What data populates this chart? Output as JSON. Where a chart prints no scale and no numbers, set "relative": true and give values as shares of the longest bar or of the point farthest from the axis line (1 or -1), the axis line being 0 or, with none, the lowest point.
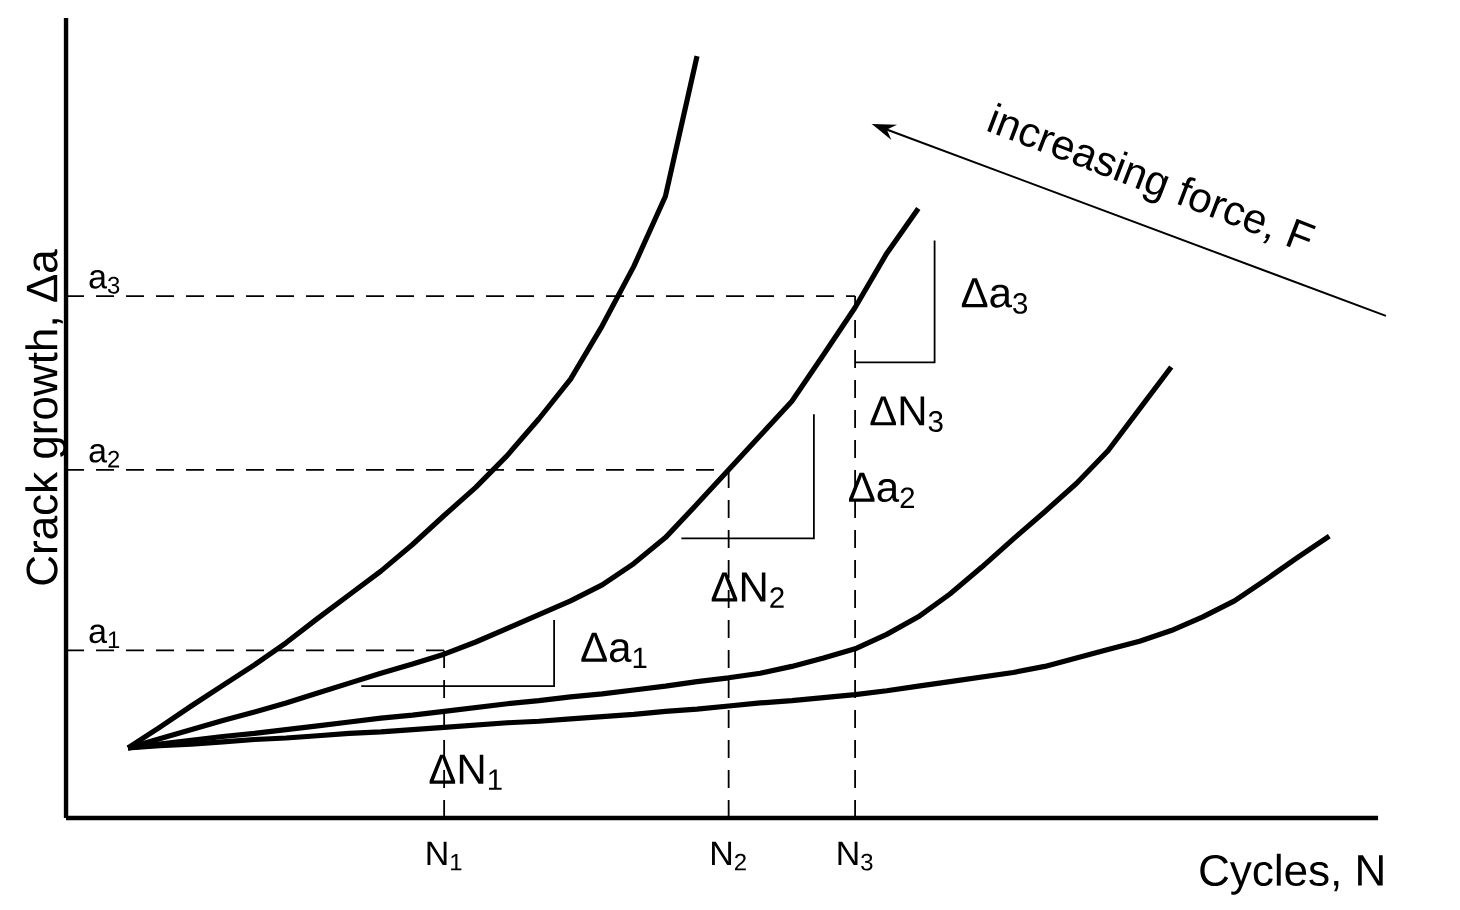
{
  "chart_data": {
    "type": "line",
    "relative": true,
    "xlabel": "Cycles, N",
    "ylabel": "Crack growth, Δa",
    "line_style": "solid",
    "marker": "none",
    "categories": [
      null,
      null,
      null,
      null,
      null,
      null,
      null,
      null,
      null,
      null,
      "N$_{1}$",
      null,
      null,
      null,
      null,
      null,
      null,
      null,
      null,
      "N$_{2}$",
      null,
      null,
      null,
      "N$_{3}$",
      null,
      null,
      null,
      null,
      null,
      null,
      null,
      null,
      null,
      null,
      null,
      null,
      null,
      null,
      null
    ],
    "series": [
      {
        "color": "#000000",
        "values": [
          0.092,
          0.119,
          0.147,
          0.174,
          0.201,
          0.23,
          0.262,
          0.293,
          0.324,
          0.359,
          0.397,
          0.434,
          0.476,
          0.524,
          0.576,
          0.646,
          0.724,
          0.816,
          1.0,
          null,
          null,
          null,
          null,
          null,
          null,
          null,
          null,
          null,
          null,
          null,
          null,
          null,
          null,
          null,
          null,
          null,
          null,
          null,
          null
        ]
      },
      {
        "color": "#000000",
        "values": [
          0.092,
          0.104,
          0.116,
          0.128,
          0.139,
          0.151,
          0.164,
          0.177,
          0.19,
          0.202,
          0.215,
          0.231,
          0.249,
          0.267,
          0.285,
          0.306,
          0.334,
          0.368,
          0.412,
          0.457,
          0.502,
          0.547,
          0.608,
          0.67,
          0.741,
          0.8,
          null,
          null,
          null,
          null,
          null,
          null,
          null,
          null,
          null,
          null,
          null,
          null,
          null
        ]
      },
      {
        "color": "#000000",
        "values": [
          0.092,
          0.097,
          0.102,
          0.107,
          0.111,
          0.116,
          0.121,
          0.126,
          0.131,
          0.135,
          0.14,
          0.145,
          0.15,
          0.154,
          0.159,
          0.163,
          0.168,
          0.173,
          0.179,
          0.184,
          0.19,
          0.199,
          0.21,
          0.222,
          0.241,
          0.264,
          0.294,
          0.329,
          0.366,
          0.402,
          0.439,
          0.482,
          0.537,
          0.592,
          null,
          null,
          null,
          null,
          null
        ]
      },
      {
        "color": "#000000",
        "values": [
          0.092,
          0.095,
          0.097,
          0.1,
          0.103,
          0.105,
          0.108,
          0.111,
          0.113,
          0.116,
          0.119,
          0.122,
          0.125,
          0.127,
          0.13,
          0.133,
          0.136,
          0.14,
          0.143,
          0.147,
          0.151,
          0.154,
          0.158,
          0.162,
          0.167,
          0.173,
          0.179,
          0.185,
          0.191,
          0.199,
          0.21,
          0.221,
          0.232,
          0.246,
          0.264,
          0.285,
          0.313,
          0.342,
          0.37
        ]
      }
    ],
    "ref_lines": [
      {
        "axis": "y",
        "value": 0.22,
        "label": "a$_{1}$",
        "line_style": "dashed"
      },
      {
        "axis": "y",
        "value": 0.457,
        "label": "a$_{2}$",
        "line_style": "dashed"
      },
      {
        "axis": "y",
        "value": 0.685,
        "label": "a$_{3}$",
        "line_style": "dashed"
      },
      {
        "axis": "x",
        "value": "N$_{1}$",
        "line_style": "dashed"
      },
      {
        "axis": "x",
        "value": "N$_{2}$",
        "line_style": "dashed"
      },
      {
        "axis": "x",
        "value": "N$_{3}$",
        "line_style": "dashed"
      }
    ],
    "annotations": [
      "Δa$_{1}$",
      "ΔN$_{1}$",
      "Δa$_{2}$",
      "ΔN$_{2}$",
      "Δa$_{3}$",
      "ΔN$_{3}$",
      "increasing force, F"
    ]
  }
}
